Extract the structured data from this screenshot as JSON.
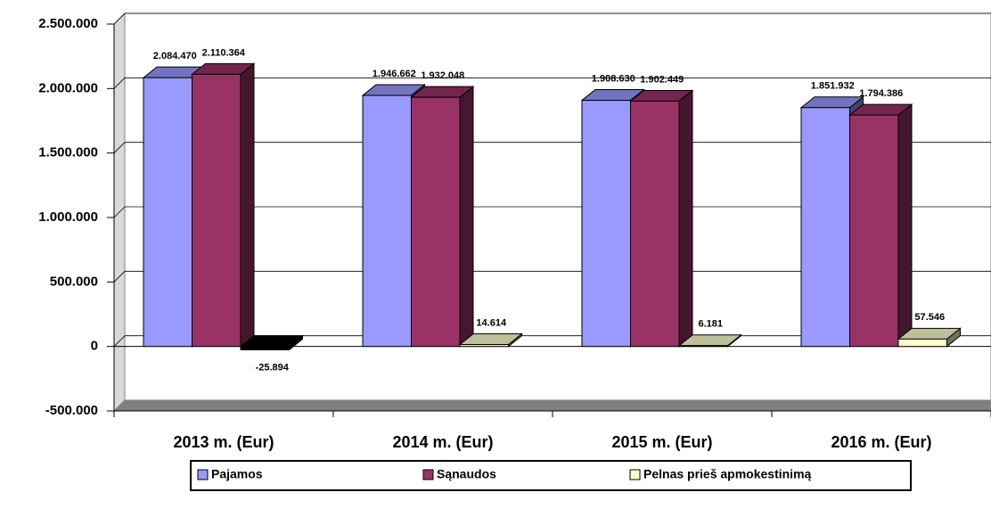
{
  "chart_data": {
    "type": "bar3d",
    "categories": [
      "2013 m. (Eur)",
      "2014 m. (Eur)",
      "2015 m. (Eur)",
      "2016 m. (Eur)"
    ],
    "series": [
      {
        "name": "Pajamos",
        "color": "#9999ff",
        "values": [
          2084470,
          1946662,
          1908630,
          1851932
        ],
        "value_labels": [
          "2.084.470",
          "1.946.662",
          "1.908.630",
          "1.851.932"
        ]
      },
      {
        "name": "Sąnaudos",
        "color": "#993366",
        "values": [
          2110364,
          1932048,
          1902449,
          1794386
        ],
        "value_labels": [
          "2.110.364",
          "1.932.048",
          "1.902.449",
          "1.794.386"
        ]
      },
      {
        "name": "Pelnas prieš apmokestinimą",
        "color": "#ffffcc",
        "values": [
          -25894,
          14614,
          6181,
          57546
        ],
        "value_labels": [
          "-25.894",
          "14.614",
          "6.181",
          "57.546"
        ]
      }
    ],
    "negative_color": "#000000",
    "ylim": [
      -500000,
      2500000
    ],
    "yticks": [
      {
        "value": -500000,
        "label": "-500.000"
      },
      0,
      {
        "value": 500000,
        "label": "500.000"
      },
      {
        "value": 1000000,
        "label": "1.000.000"
      },
      {
        "value": 1500000,
        "label": "1.500.000"
      },
      {
        "value": 2000000,
        "label": "2.000.000"
      },
      {
        "value": 2500000,
        "label": "2.500.000"
      }
    ],
    "grid": true,
    "legend": "bottom"
  }
}
